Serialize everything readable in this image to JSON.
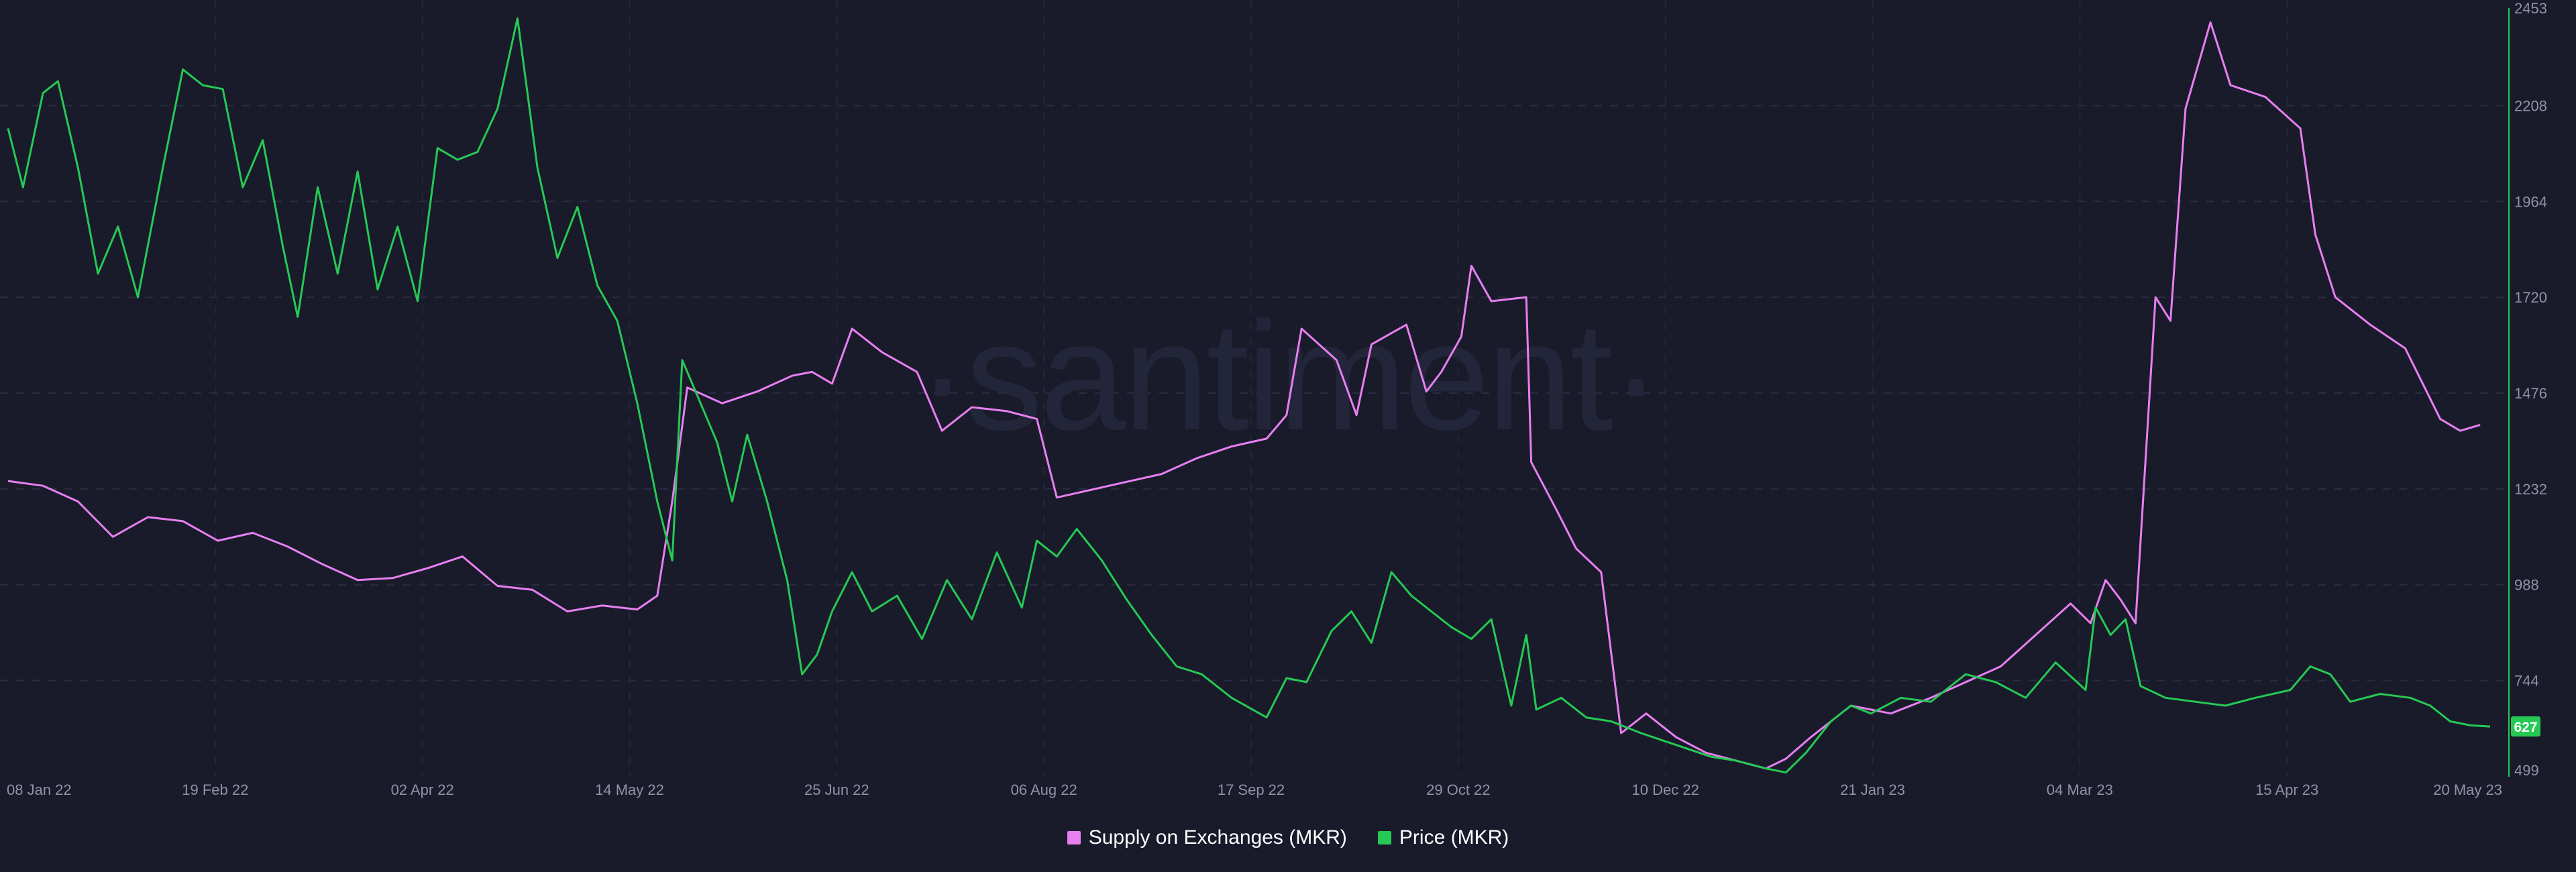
{
  "watermark": "·santiment·",
  "chart_data": {
    "type": "line",
    "x_range": [
      "2022-01-08",
      "2023-05-20"
    ],
    "x_ticks": [
      "08 Jan 22",
      "19 Feb 22",
      "02 Apr 22",
      "14 May 22",
      "25 Jun 22",
      "06 Aug 22",
      "17 Sep 22",
      "29 Oct 22",
      "10 Dec 22",
      "21 Jan 23",
      "04 Mar 23",
      "15 Apr 23",
      "20 May 23"
    ],
    "y_ticks": [
      "2453",
      "2208",
      "1964",
      "1720",
      "1476",
      "1232",
      "988",
      "744",
      "499"
    ],
    "ylim": [
      499,
      2453
    ],
    "grid": true,
    "legend_position": "bottom-center",
    "current_price_label": "627",
    "series": [
      {
        "name": "Supply on Exchanges (MKR)",
        "color": "#e77ff0",
        "points": [
          [
            "2022-01-08",
            1252
          ],
          [
            "2022-01-15",
            1240
          ],
          [
            "2022-01-22",
            1200
          ],
          [
            "2022-01-29",
            1110
          ],
          [
            "2022-02-05",
            1160
          ],
          [
            "2022-02-12",
            1150
          ],
          [
            "2022-02-19",
            1100
          ],
          [
            "2022-02-26",
            1120
          ],
          [
            "2022-03-05",
            1085
          ],
          [
            "2022-03-12",
            1040
          ],
          [
            "2022-03-19",
            1000
          ],
          [
            "2022-03-26",
            1005
          ],
          [
            "2022-04-02",
            1030
          ],
          [
            "2022-04-09",
            1060
          ],
          [
            "2022-04-16",
            985
          ],
          [
            "2022-04-23",
            975
          ],
          [
            "2022-04-30",
            920
          ],
          [
            "2022-05-07",
            935
          ],
          [
            "2022-05-14",
            925
          ],
          [
            "2022-05-18",
            960
          ],
          [
            "2022-05-21",
            1200
          ],
          [
            "2022-05-24",
            1490
          ],
          [
            "2022-05-31",
            1450
          ],
          [
            "2022-06-07",
            1480
          ],
          [
            "2022-06-14",
            1520
          ],
          [
            "2022-06-18",
            1530
          ],
          [
            "2022-06-22",
            1500
          ],
          [
            "2022-06-26",
            1640
          ],
          [
            "2022-07-02",
            1580
          ],
          [
            "2022-07-09",
            1530
          ],
          [
            "2022-07-14",
            1380
          ],
          [
            "2022-07-20",
            1440
          ],
          [
            "2022-07-27",
            1430
          ],
          [
            "2022-08-02",
            1410
          ],
          [
            "2022-08-06",
            1210
          ],
          [
            "2022-08-13",
            1230
          ],
          [
            "2022-08-20",
            1250
          ],
          [
            "2022-08-27",
            1270
          ],
          [
            "2022-09-03",
            1310
          ],
          [
            "2022-09-10",
            1340
          ],
          [
            "2022-09-17",
            1360
          ],
          [
            "2022-09-21",
            1420
          ],
          [
            "2022-09-24",
            1640
          ],
          [
            "2022-10-01",
            1560
          ],
          [
            "2022-10-05",
            1420
          ],
          [
            "2022-10-08",
            1600
          ],
          [
            "2022-10-15",
            1650
          ],
          [
            "2022-10-19",
            1480
          ],
          [
            "2022-10-22",
            1530
          ],
          [
            "2022-10-26",
            1620
          ],
          [
            "2022-10-28",
            1800
          ],
          [
            "2022-11-01",
            1710
          ],
          [
            "2022-11-08",
            1720
          ],
          [
            "2022-11-09",
            1300
          ],
          [
            "2022-11-14",
            1180
          ],
          [
            "2022-11-18",
            1080
          ],
          [
            "2022-11-23",
            1020
          ],
          [
            "2022-11-27",
            610
          ],
          [
            "2022-12-02",
            660
          ],
          [
            "2022-12-08",
            600
          ],
          [
            "2022-12-14",
            560
          ],
          [
            "2022-12-20",
            540
          ],
          [
            "2022-12-26",
            520
          ],
          [
            "2022-12-30",
            545
          ],
          [
            "2023-01-04",
            600
          ],
          [
            "2023-01-12",
            680
          ],
          [
            "2023-01-20",
            660
          ],
          [
            "2023-01-28",
            700
          ],
          [
            "2023-02-04",
            740
          ],
          [
            "2023-02-11",
            780
          ],
          [
            "2023-02-18",
            860
          ],
          [
            "2023-02-25",
            940
          ],
          [
            "2023-03-01",
            890
          ],
          [
            "2023-03-04",
            1000
          ],
          [
            "2023-03-07",
            950
          ],
          [
            "2023-03-10",
            890
          ],
          [
            "2023-03-14",
            1720
          ],
          [
            "2023-03-17",
            1660
          ],
          [
            "2023-03-20",
            2200
          ],
          [
            "2023-03-25",
            2420
          ],
          [
            "2023-03-29",
            2260
          ],
          [
            "2023-04-05",
            2230
          ],
          [
            "2023-04-12",
            2150
          ],
          [
            "2023-04-15",
            1880
          ],
          [
            "2023-04-19",
            1720
          ],
          [
            "2023-04-26",
            1650
          ],
          [
            "2023-05-03",
            1590
          ],
          [
            "2023-05-10",
            1410
          ],
          [
            "2023-05-14",
            1380
          ],
          [
            "2023-05-18",
            1395
          ]
        ]
      },
      {
        "name": "Price (MKR)",
        "color": "#26c953",
        "points": [
          [
            "2022-01-08",
            2150
          ],
          [
            "2022-01-11",
            2000
          ],
          [
            "2022-01-15",
            2240
          ],
          [
            "2022-01-18",
            2270
          ],
          [
            "2022-01-22",
            2050
          ],
          [
            "2022-01-26",
            1780
          ],
          [
            "2022-01-30",
            1900
          ],
          [
            "2022-02-03",
            1720
          ],
          [
            "2022-02-08",
            2050
          ],
          [
            "2022-02-12",
            2300
          ],
          [
            "2022-02-16",
            2260
          ],
          [
            "2022-02-20",
            2250
          ],
          [
            "2022-02-24",
            2000
          ],
          [
            "2022-02-28",
            2120
          ],
          [
            "2022-03-04",
            1850
          ],
          [
            "2022-03-07",
            1670
          ],
          [
            "2022-03-11",
            2000
          ],
          [
            "2022-03-15",
            1780
          ],
          [
            "2022-03-19",
            2040
          ],
          [
            "2022-03-23",
            1740
          ],
          [
            "2022-03-27",
            1900
          ],
          [
            "2022-03-31",
            1710
          ],
          [
            "2022-04-04",
            2100
          ],
          [
            "2022-04-08",
            2070
          ],
          [
            "2022-04-12",
            2090
          ],
          [
            "2022-04-16",
            2200
          ],
          [
            "2022-04-20",
            2430
          ],
          [
            "2022-04-24",
            2050
          ],
          [
            "2022-04-28",
            1820
          ],
          [
            "2022-05-02",
            1950
          ],
          [
            "2022-05-06",
            1750
          ],
          [
            "2022-05-10",
            1660
          ],
          [
            "2022-05-14",
            1450
          ],
          [
            "2022-05-18",
            1200
          ],
          [
            "2022-05-21",
            1050
          ],
          [
            "2022-05-23",
            1560
          ],
          [
            "2022-05-26",
            1470
          ],
          [
            "2022-05-30",
            1350
          ],
          [
            "2022-06-02",
            1200
          ],
          [
            "2022-06-05",
            1370
          ],
          [
            "2022-06-09",
            1200
          ],
          [
            "2022-06-13",
            1000
          ],
          [
            "2022-06-16",
            760
          ],
          [
            "2022-06-19",
            810
          ],
          [
            "2022-06-22",
            920
          ],
          [
            "2022-06-26",
            1020
          ],
          [
            "2022-06-30",
            920
          ],
          [
            "2022-07-05",
            960
          ],
          [
            "2022-07-10",
            850
          ],
          [
            "2022-07-15",
            1000
          ],
          [
            "2022-07-20",
            900
          ],
          [
            "2022-07-25",
            1070
          ],
          [
            "2022-07-30",
            930
          ],
          [
            "2022-08-02",
            1100
          ],
          [
            "2022-08-06",
            1060
          ],
          [
            "2022-08-10",
            1130
          ],
          [
            "2022-08-15",
            1050
          ],
          [
            "2022-08-20",
            950
          ],
          [
            "2022-08-25",
            860
          ],
          [
            "2022-08-30",
            780
          ],
          [
            "2022-09-04",
            760
          ],
          [
            "2022-09-10",
            700
          ],
          [
            "2022-09-17",
            650
          ],
          [
            "2022-09-21",
            750
          ],
          [
            "2022-09-25",
            740
          ],
          [
            "2022-09-30",
            870
          ],
          [
            "2022-10-04",
            920
          ],
          [
            "2022-10-08",
            840
          ],
          [
            "2022-10-12",
            1020
          ],
          [
            "2022-10-16",
            960
          ],
          [
            "2022-10-20",
            920
          ],
          [
            "2022-10-24",
            880
          ],
          [
            "2022-10-28",
            850
          ],
          [
            "2022-11-01",
            900
          ],
          [
            "2022-11-05",
            680
          ],
          [
            "2022-11-08",
            860
          ],
          [
            "2022-11-10",
            670
          ],
          [
            "2022-11-15",
            700
          ],
          [
            "2022-11-20",
            650
          ],
          [
            "2022-11-25",
            640
          ],
          [
            "2022-12-01",
            610
          ],
          [
            "2022-12-08",
            580
          ],
          [
            "2022-12-15",
            550
          ],
          [
            "2022-12-20",
            540
          ],
          [
            "2022-12-26",
            520
          ],
          [
            "2022-12-30",
            510
          ],
          [
            "2023-01-03",
            560
          ],
          [
            "2023-01-08",
            640
          ],
          [
            "2023-01-12",
            680
          ],
          [
            "2023-01-16",
            660
          ],
          [
            "2023-01-22",
            700
          ],
          [
            "2023-01-28",
            690
          ],
          [
            "2023-02-04",
            760
          ],
          [
            "2023-02-10",
            740
          ],
          [
            "2023-02-16",
            700
          ],
          [
            "2023-02-22",
            790
          ],
          [
            "2023-02-28",
            720
          ],
          [
            "2023-03-02",
            930
          ],
          [
            "2023-03-05",
            860
          ],
          [
            "2023-03-08",
            900
          ],
          [
            "2023-03-11",
            730
          ],
          [
            "2023-03-16",
            700
          ],
          [
            "2023-03-22",
            690
          ],
          [
            "2023-03-28",
            680
          ],
          [
            "2023-04-03",
            700
          ],
          [
            "2023-04-10",
            720
          ],
          [
            "2023-04-14",
            780
          ],
          [
            "2023-04-18",
            760
          ],
          [
            "2023-04-22",
            690
          ],
          [
            "2023-04-28",
            710
          ],
          [
            "2023-05-04",
            700
          ],
          [
            "2023-05-08",
            680
          ],
          [
            "2023-05-12",
            640
          ],
          [
            "2023-05-16",
            630
          ],
          [
            "2023-05-20",
            627
          ]
        ]
      }
    ]
  }
}
